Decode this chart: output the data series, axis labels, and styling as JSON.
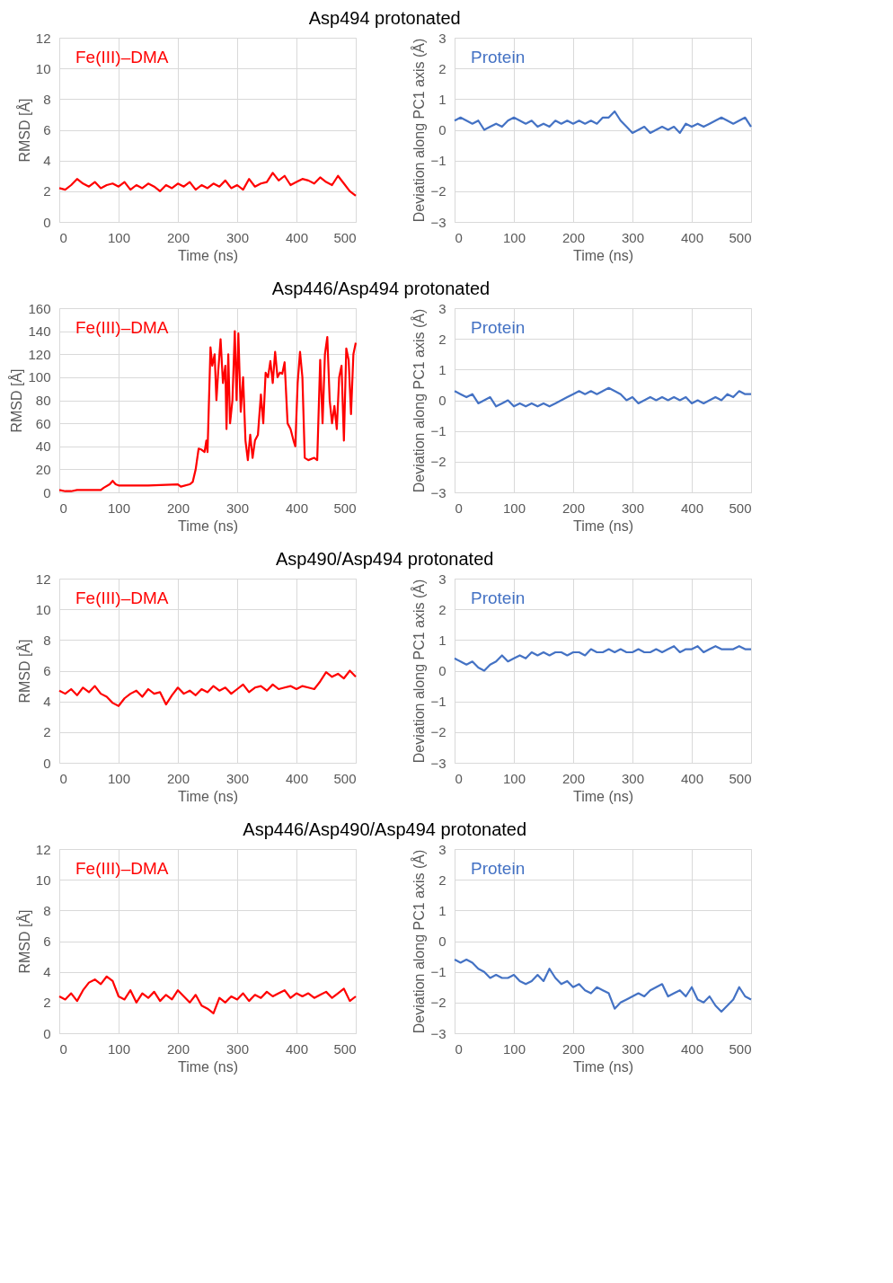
{
  "chart_data": [
    {
      "type": "line",
      "title": "Asp494 protonated",
      "xlabel": "Time (ns)",
      "ylabel": "RMSD [Å]",
      "xlim": [
        0,
        500
      ],
      "ylim": [
        0,
        12
      ],
      "xticks": [
        0,
        100,
        200,
        300,
        400,
        500
      ],
      "yticks": [
        0,
        2,
        4,
        6,
        8,
        10,
        12
      ],
      "grid": true,
      "legend": "top left",
      "x": [
        0,
        10,
        20,
        30,
        40,
        50,
        60,
        70,
        80,
        90,
        100,
        110,
        120,
        130,
        140,
        150,
        160,
        170,
        180,
        190,
        200,
        210,
        220,
        230,
        240,
        250,
        260,
        270,
        280,
        290,
        300,
        310,
        320,
        330,
        340,
        350,
        360,
        370,
        380,
        390,
        400,
        410,
        420,
        430,
        440,
        450,
        460,
        470,
        480,
        490,
        500
      ],
      "series": [
        {
          "name": "Fe(III)–DMA",
          "color": "#ff0000",
          "values": [
            2.2,
            2.1,
            2.4,
            2.8,
            2.5,
            2.3,
            2.6,
            2.2,
            2.4,
            2.5,
            2.3,
            2.6,
            2.1,
            2.4,
            2.2,
            2.5,
            2.3,
            2.0,
            2.4,
            2.2,
            2.5,
            2.3,
            2.6,
            2.1,
            2.4,
            2.2,
            2.5,
            2.3,
            2.7,
            2.2,
            2.4,
            2.1,
            2.8,
            2.3,
            2.5,
            2.6,
            3.2,
            2.7,
            3.0,
            2.4,
            2.6,
            2.8,
            2.7,
            2.5,
            2.9,
            2.6,
            2.4,
            3.0,
            2.5,
            2.0,
            1.7
          ]
        }
      ]
    },
    {
      "type": "line",
      "xlabel": "Time (ns)",
      "ylabel": "Deviation along PC1 axis (Å)",
      "xlim": [
        0,
        500
      ],
      "ylim": [
        -3,
        3
      ],
      "xticks": [
        0,
        100,
        200,
        300,
        400,
        500
      ],
      "yticks": [
        -3,
        -2,
        -1,
        0,
        1,
        2,
        3
      ],
      "grid": true,
      "legend": "top left",
      "x": [
        0,
        10,
        20,
        30,
        40,
        50,
        60,
        70,
        80,
        90,
        100,
        110,
        120,
        130,
        140,
        150,
        160,
        170,
        180,
        190,
        200,
        210,
        220,
        230,
        240,
        250,
        260,
        270,
        280,
        290,
        300,
        310,
        320,
        330,
        340,
        350,
        360,
        370,
        380,
        390,
        400,
        410,
        420,
        430,
        440,
        450,
        460,
        470,
        480,
        490,
        500
      ],
      "series": [
        {
          "name": "Protein",
          "color": "#4472c4",
          "values": [
            0.3,
            0.4,
            0.3,
            0.2,
            0.3,
            0.0,
            0.1,
            0.2,
            0.1,
            0.3,
            0.4,
            0.3,
            0.2,
            0.3,
            0.1,
            0.2,
            0.1,
            0.3,
            0.2,
            0.3,
            0.2,
            0.3,
            0.2,
            0.3,
            0.2,
            0.4,
            0.4,
            0.6,
            0.3,
            0.1,
            -0.1,
            0.0,
            0.1,
            -0.1,
            0.0,
            0.1,
            0.0,
            0.1,
            -0.1,
            0.2,
            0.1,
            0.2,
            0.1,
            0.2,
            0.3,
            0.4,
            0.3,
            0.2,
            0.3,
            0.4,
            0.1
          ]
        }
      ]
    },
    {
      "type": "line",
      "title": "Asp446/Asp494 protonated",
      "xlabel": "Time (ns)",
      "ylabel": "RMSD [Å]",
      "xlim": [
        0,
        500
      ],
      "ylim": [
        0,
        160
      ],
      "xticks": [
        0,
        100,
        200,
        300,
        400,
        500
      ],
      "yticks": [
        0,
        20,
        40,
        60,
        80,
        100,
        120,
        140,
        160
      ],
      "grid": true,
      "legend": "top left",
      "x": [
        0,
        10,
        20,
        30,
        50,
        70,
        75,
        85,
        90,
        95,
        100,
        150,
        200,
        205,
        220,
        225,
        230,
        235,
        240,
        245,
        248,
        250,
        255,
        258,
        262,
        265,
        268,
        272,
        276,
        280,
        282,
        285,
        288,
        292,
        296,
        299,
        302,
        306,
        310,
        314,
        318,
        322,
        326,
        330,
        335,
        340,
        344,
        348,
        352,
        356,
        360,
        364,
        368,
        372,
        376,
        380,
        385,
        390,
        395,
        398,
        402,
        406,
        410,
        414,
        420,
        430,
        435,
        440,
        444,
        448,
        452,
        456,
        460,
        464,
        468,
        472,
        476,
        480,
        484,
        488,
        492,
        496,
        500
      ],
      "series": [
        {
          "name": "Fe(III)–DMA",
          "color": "#ff0000",
          "values": [
            2,
            1,
            1,
            2,
            2,
            2,
            4,
            7,
            10,
            7,
            6,
            6,
            7,
            5,
            7,
            9,
            20,
            38,
            37,
            35,
            45,
            35,
            126,
            110,
            120,
            80,
            105,
            133,
            95,
            110,
            55,
            120,
            60,
            80,
            140,
            80,
            138,
            70,
            100,
            45,
            28,
            50,
            30,
            45,
            50,
            85,
            60,
            104,
            100,
            114,
            95,
            122,
            100,
            104,
            103,
            113,
            60,
            55,
            45,
            40,
            95,
            122,
            100,
            30,
            28,
            30,
            28,
            115,
            60,
            120,
            135,
            80,
            60,
            75,
            55,
            100,
            110,
            45,
            125,
            115,
            68,
            120,
            130
          ]
        }
      ]
    },
    {
      "type": "line",
      "xlabel": "Time (ns)",
      "ylabel": "Deviation along PC1 axis (Å)",
      "xlim": [
        0,
        500
      ],
      "ylim": [
        -3,
        3
      ],
      "xticks": [
        0,
        100,
        200,
        300,
        400,
        500
      ],
      "yticks": [
        -3,
        -2,
        -1,
        0,
        1,
        2,
        3
      ],
      "grid": true,
      "legend": "top left",
      "x": [
        0,
        10,
        20,
        30,
        40,
        50,
        60,
        70,
        80,
        90,
        100,
        110,
        120,
        130,
        140,
        150,
        160,
        170,
        180,
        190,
        200,
        210,
        220,
        230,
        240,
        250,
        260,
        270,
        280,
        290,
        300,
        310,
        320,
        330,
        340,
        350,
        360,
        370,
        380,
        390,
        400,
        410,
        420,
        430,
        440,
        450,
        460,
        470,
        480,
        490,
        500
      ],
      "series": [
        {
          "name": "Protein",
          "color": "#4472c4",
          "values": [
            0.3,
            0.2,
            0.1,
            0.2,
            -0.1,
            0.0,
            0.1,
            -0.2,
            -0.1,
            0.0,
            -0.2,
            -0.1,
            -0.2,
            -0.1,
            -0.2,
            -0.1,
            -0.2,
            -0.1,
            0.0,
            0.1,
            0.2,
            0.3,
            0.2,
            0.3,
            0.2,
            0.3,
            0.4,
            0.3,
            0.2,
            0.0,
            0.1,
            -0.1,
            0.0,
            0.1,
            0.0,
            0.1,
            0.0,
            0.1,
            0.0,
            0.1,
            -0.1,
            0.0,
            -0.1,
            0.0,
            0.1,
            0.0,
            0.2,
            0.1,
            0.3,
            0.2,
            0.2
          ]
        }
      ]
    },
    {
      "type": "line",
      "title": "Asp490/Asp494 protonated",
      "xlabel": "Time (ns)",
      "ylabel": "RMSD [Å]",
      "xlim": [
        0,
        500
      ],
      "ylim": [
        0,
        12
      ],
      "xticks": [
        0,
        100,
        200,
        300,
        400,
        500
      ],
      "yticks": [
        0,
        2,
        4,
        6,
        8,
        10,
        12
      ],
      "grid": true,
      "legend": "top left",
      "x": [
        0,
        10,
        20,
        30,
        40,
        50,
        60,
        70,
        80,
        90,
        100,
        110,
        120,
        130,
        140,
        150,
        160,
        170,
        180,
        190,
        200,
        210,
        220,
        230,
        240,
        250,
        260,
        270,
        280,
        290,
        300,
        310,
        320,
        330,
        340,
        350,
        360,
        370,
        380,
        390,
        400,
        410,
        420,
        430,
        440,
        450,
        460,
        470,
        480,
        490,
        500
      ],
      "series": [
        {
          "name": "Fe(III)–DMA",
          "color": "#ff0000",
          "values": [
            4.7,
            4.5,
            4.8,
            4.4,
            4.9,
            4.6,
            5.0,
            4.5,
            4.3,
            3.9,
            3.7,
            4.2,
            4.5,
            4.7,
            4.3,
            4.8,
            4.5,
            4.6,
            3.8,
            4.4,
            4.9,
            4.5,
            4.7,
            4.4,
            4.8,
            4.6,
            5.0,
            4.7,
            4.9,
            4.5,
            4.8,
            5.1,
            4.6,
            4.9,
            5.0,
            4.7,
            5.1,
            4.8,
            4.9,
            5.0,
            4.8,
            5.0,
            4.9,
            4.8,
            5.3,
            5.9,
            5.6,
            5.8,
            5.5,
            6.0,
            5.6
          ]
        }
      ]
    },
    {
      "type": "line",
      "xlabel": "Time (ns)",
      "ylabel": "Deviation along PC1 axis (Å)",
      "xlim": [
        0,
        500
      ],
      "ylim": [
        -3,
        3
      ],
      "xticks": [
        0,
        100,
        200,
        300,
        400,
        500
      ],
      "yticks": [
        -3,
        -2,
        -1,
        0,
        1,
        2,
        3
      ],
      "grid": true,
      "legend": "top left",
      "x": [
        0,
        10,
        20,
        30,
        40,
        50,
        60,
        70,
        80,
        90,
        100,
        110,
        120,
        130,
        140,
        150,
        160,
        170,
        180,
        190,
        200,
        210,
        220,
        230,
        240,
        250,
        260,
        270,
        280,
        290,
        300,
        310,
        320,
        330,
        340,
        350,
        360,
        370,
        380,
        390,
        400,
        410,
        420,
        430,
        440,
        450,
        460,
        470,
        480,
        490,
        500
      ],
      "series": [
        {
          "name": "Protein",
          "color": "#4472c4",
          "values": [
            0.4,
            0.3,
            0.2,
            0.3,
            0.1,
            0.0,
            0.2,
            0.3,
            0.5,
            0.3,
            0.4,
            0.5,
            0.4,
            0.6,
            0.5,
            0.6,
            0.5,
            0.6,
            0.6,
            0.5,
            0.6,
            0.6,
            0.5,
            0.7,
            0.6,
            0.6,
            0.7,
            0.6,
            0.7,
            0.6,
            0.6,
            0.7,
            0.6,
            0.6,
            0.7,
            0.6,
            0.7,
            0.8,
            0.6,
            0.7,
            0.7,
            0.8,
            0.6,
            0.7,
            0.8,
            0.7,
            0.7,
            0.7,
            0.8,
            0.7,
            0.7
          ]
        }
      ]
    },
    {
      "type": "line",
      "title": "Asp446/Asp490/Asp494 protonated",
      "xlabel": "Time (ns)",
      "ylabel": "RMSD [Å]",
      "xlim": [
        0,
        500
      ],
      "ylim": [
        0,
        12
      ],
      "xticks": [
        0,
        100,
        200,
        300,
        400,
        500
      ],
      "yticks": [
        0,
        2,
        4,
        6,
        8,
        10,
        12
      ],
      "grid": true,
      "legend": "top left",
      "x": [
        0,
        10,
        20,
        30,
        40,
        50,
        60,
        70,
        80,
        90,
        100,
        110,
        120,
        130,
        140,
        150,
        160,
        170,
        180,
        190,
        200,
        210,
        220,
        230,
        240,
        250,
        260,
        270,
        280,
        290,
        300,
        310,
        320,
        330,
        340,
        350,
        360,
        370,
        380,
        390,
        400,
        410,
        420,
        430,
        440,
        450,
        460,
        470,
        480,
        490,
        500
      ],
      "series": [
        {
          "name": "Fe(III)–DMA",
          "color": "#ff0000",
          "values": [
            2.4,
            2.2,
            2.6,
            2.1,
            2.8,
            3.3,
            3.5,
            3.2,
            3.7,
            3.4,
            2.4,
            2.2,
            2.8,
            2.0,
            2.6,
            2.3,
            2.7,
            2.1,
            2.5,
            2.2,
            2.8,
            2.4,
            2.0,
            2.5,
            1.8,
            1.6,
            1.3,
            2.3,
            2.0,
            2.4,
            2.2,
            2.6,
            2.1,
            2.5,
            2.3,
            2.7,
            2.4,
            2.6,
            2.8,
            2.3,
            2.6,
            2.4,
            2.6,
            2.3,
            2.5,
            2.7,
            2.3,
            2.6,
            2.9,
            2.1,
            2.4
          ]
        }
      ]
    },
    {
      "type": "line",
      "xlabel": "Time (ns)",
      "ylabel": "Deviation along PC1 axis (Å)",
      "xlim": [
        0,
        500
      ],
      "ylim": [
        -3,
        3
      ],
      "xticks": [
        0,
        100,
        200,
        300,
        400,
        500
      ],
      "yticks": [
        -3,
        -2,
        -1,
        0,
        1,
        2,
        3
      ],
      "grid": true,
      "legend": "top left",
      "x": [
        0,
        10,
        20,
        30,
        40,
        50,
        60,
        70,
        80,
        90,
        100,
        110,
        120,
        130,
        140,
        150,
        160,
        170,
        180,
        190,
        200,
        210,
        220,
        230,
        240,
        250,
        260,
        270,
        280,
        290,
        300,
        310,
        320,
        330,
        340,
        350,
        360,
        370,
        380,
        390,
        400,
        410,
        420,
        430,
        440,
        450,
        460,
        470,
        480,
        490,
        500
      ],
      "series": [
        {
          "name": "Protein",
          "color": "#4472c4",
          "values": [
            -0.6,
            -0.7,
            -0.6,
            -0.7,
            -0.9,
            -1.0,
            -1.2,
            -1.1,
            -1.2,
            -1.2,
            -1.1,
            -1.3,
            -1.4,
            -1.3,
            -1.1,
            -1.3,
            -0.9,
            -1.2,
            -1.4,
            -1.3,
            -1.5,
            -1.4,
            -1.6,
            -1.7,
            -1.5,
            -1.6,
            -1.7,
            -2.2,
            -2.0,
            -1.9,
            -1.8,
            -1.7,
            -1.8,
            -1.6,
            -1.5,
            -1.4,
            -1.8,
            -1.7,
            -1.6,
            -1.8,
            -1.5,
            -1.9,
            -2.0,
            -1.8,
            -2.1,
            -2.3,
            -2.1,
            -1.9,
            -1.5,
            -1.8,
            -1.9
          ]
        }
      ]
    }
  ]
}
